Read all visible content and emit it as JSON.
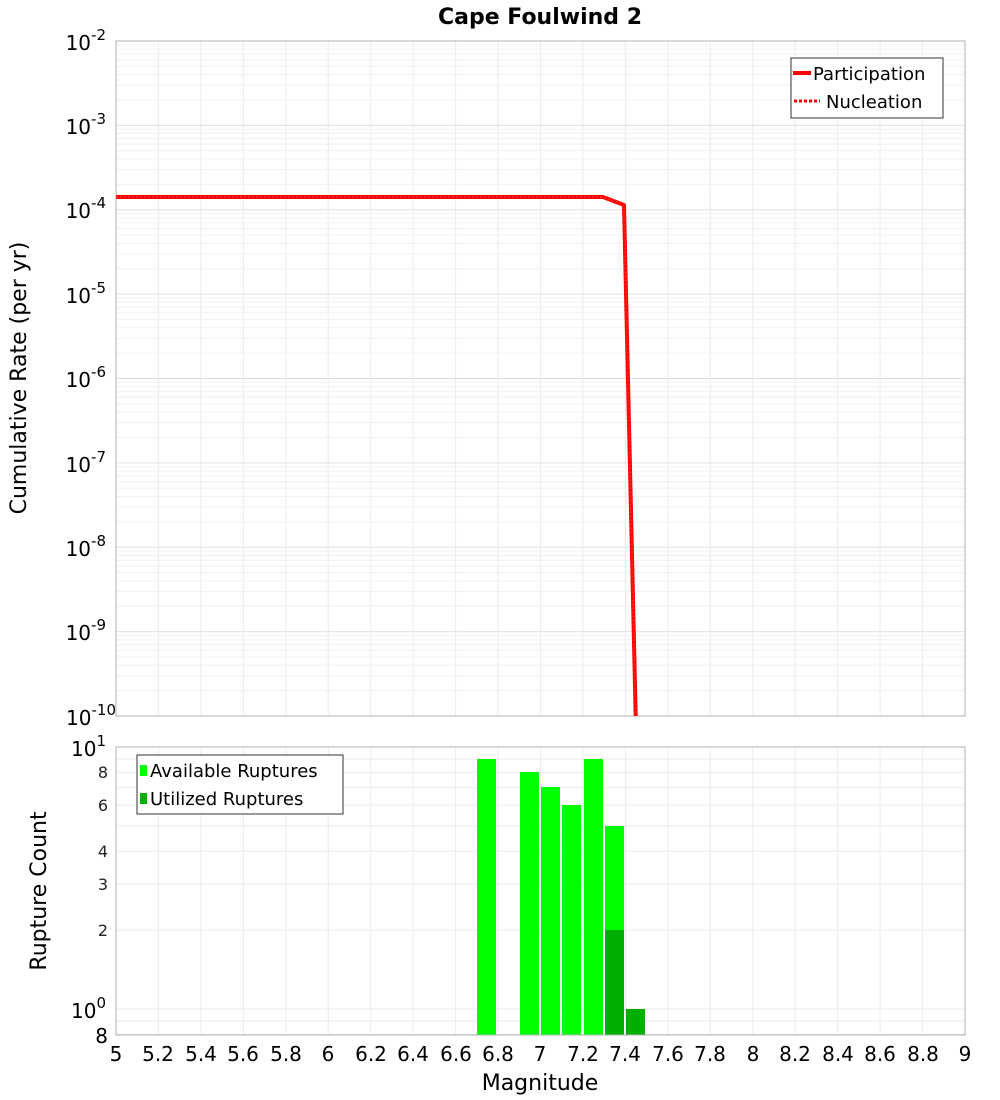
{
  "chart_data": [
    {
      "type": "line",
      "title": "Cape Foulwind 2",
      "xlabel": "Magnitude",
      "ylabel": "Cumulative Rate (per yr)",
      "xlim": [
        5,
        9
      ],
      "ylim": [
        1e-10,
        0.01
      ],
      "yscale": "log",
      "grid": true,
      "legend_position": "upper right",
      "y_ticks": [
        "10^-2",
        "10^-3",
        "10^-4",
        "10^-5",
        "10^-6",
        "10^-7",
        "10^-8",
        "10^-9",
        "10^-10"
      ],
      "series": [
        {
          "name": "Participation",
          "style": "solid",
          "color": "#ff0000",
          "x": [
            5.0,
            7.3,
            7.4,
            7.45
          ],
          "y": [
            0.00014,
            0.00014,
            0.00012,
            1e-10
          ]
        },
        {
          "name": "Nucleation",
          "style": "dotted",
          "color": "#ff0000",
          "x": [
            5.0,
            7.3,
            7.4,
            7.45
          ],
          "y": [
            0.00014,
            0.00014,
            0.00012,
            1e-10
          ]
        }
      ]
    },
    {
      "type": "bar",
      "title": "",
      "xlabel": "Magnitude",
      "ylabel": "Rupture Count",
      "xlim": [
        5,
        9
      ],
      "ylim": [
        0.8,
        10
      ],
      "yscale": "log",
      "grid": true,
      "legend_position": "upper left",
      "x_ticks": [
        "5",
        "5.2",
        "5.4",
        "5.6",
        "5.8",
        "6",
        "6.2",
        "6.4",
        "6.6",
        "6.8",
        "7",
        "7.2",
        "7.4",
        "7.6",
        "7.8",
        "8",
        "8.2",
        "8.4",
        "8.6",
        "8.8",
        "9"
      ],
      "y_ticks": [
        "10^1",
        "8",
        "6",
        "4",
        "3",
        "2",
        "10^0",
        "8"
      ],
      "categories": [
        6.75,
        6.95,
        7.05,
        7.15,
        7.25,
        7.35,
        7.45
      ],
      "series": [
        {
          "name": "Available Ruptures",
          "color": "#00ff00",
          "values": [
            9,
            8,
            7,
            6,
            9,
            5,
            1
          ]
        },
        {
          "name": "Utilized Ruptures",
          "color": "#00b000",
          "values": [
            0,
            0,
            0,
            0,
            0,
            2,
            1
          ]
        }
      ]
    }
  ],
  "top": {
    "title": "Cape Foulwind 2",
    "ylabel": "Cumulative Rate (per yr)",
    "yticks": [
      {
        "base": "10",
        "exp": "-2"
      },
      {
        "base": "10",
        "exp": "-3"
      },
      {
        "base": "10",
        "exp": "-4"
      },
      {
        "base": "10",
        "exp": "-5"
      },
      {
        "base": "10",
        "exp": "-6"
      },
      {
        "base": "10",
        "exp": "-7"
      },
      {
        "base": "10",
        "exp": "-8"
      },
      {
        "base": "10",
        "exp": "-9"
      },
      {
        "base": "10",
        "exp": "-10"
      }
    ],
    "legend": {
      "participation": "Participation",
      "nucleation": "Nucleation"
    }
  },
  "bottom": {
    "ylabel": "Rupture Count",
    "yticks": {
      "ten1_base": "10",
      "ten1_exp": "1",
      "ten0_base": "10",
      "ten0_exp": "0",
      "t8": "8",
      "t6": "6",
      "t4": "4",
      "t3": "3",
      "t2": "2",
      "t8low": "8"
    },
    "xlabel": "Magnitude",
    "xticks": [
      "5",
      "5.2",
      "5.4",
      "5.6",
      "5.8",
      "6",
      "6.2",
      "6.4",
      "6.6",
      "6.8",
      "7",
      "7.2",
      "7.4",
      "7.6",
      "7.8",
      "8",
      "8.2",
      "8.4",
      "8.6",
      "8.8",
      "9"
    ],
    "legend": {
      "available": "Available Ruptures",
      "utilized": "Utilized Ruptures"
    }
  }
}
